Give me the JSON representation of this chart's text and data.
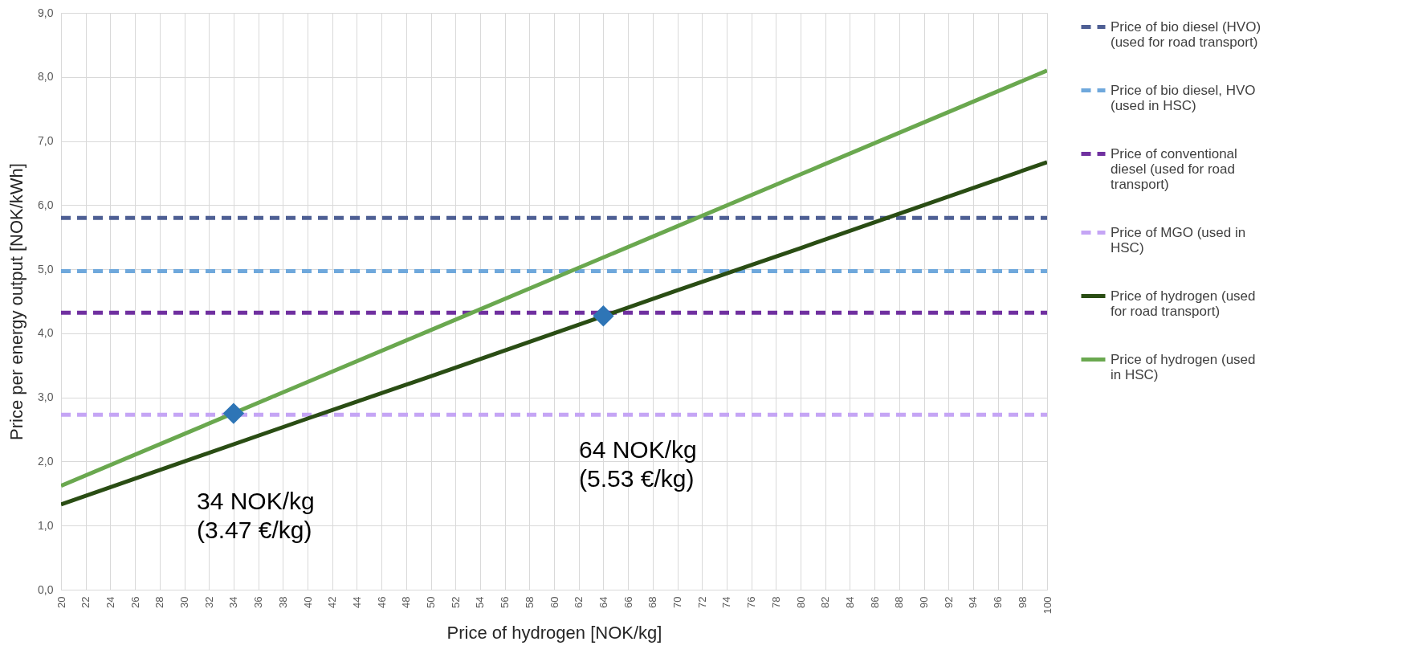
{
  "chart_data": {
    "type": "line",
    "xlabel": "Price of hydrogen [NOK/kg]",
    "ylabel": "Price per energy output [NOK/kWh]",
    "x": [
      20,
      30,
      40,
      50,
      60,
      70,
      80,
      90,
      100
    ],
    "series": [
      {
        "name": "Price of bio diesel (HVO) (used for road transport)",
        "color": "#4e5f94",
        "line_style": "dashed",
        "values": [
          5.8,
          5.8,
          5.8,
          5.8,
          5.8,
          5.8,
          5.8,
          5.8,
          5.8
        ]
      },
      {
        "name": "Price of bio diesel, HVO (used in HSC)",
        "color": "#6fa8dc",
        "line_style": "dashed",
        "values": [
          4.97,
          4.97,
          4.97,
          4.97,
          4.97,
          4.97,
          4.97,
          4.97,
          4.97
        ]
      },
      {
        "name": "Price of conventional diesel (used for road transport)",
        "color": "#7030a0",
        "line_style": "dashed",
        "values": [
          4.32,
          4.32,
          4.32,
          4.32,
          4.32,
          4.32,
          4.32,
          4.32,
          4.32
        ]
      },
      {
        "name": "Price of MGO (used in HSC)",
        "color": "#c5a5f5",
        "line_style": "dashed",
        "values": [
          2.73,
          2.73,
          2.73,
          2.73,
          2.73,
          2.73,
          2.73,
          2.73,
          2.73
        ]
      },
      {
        "name": "Price of hydrogen (used for road transport)",
        "color": "#2a4d14",
        "line_style": "solid",
        "values": [
          1.33,
          2.0,
          2.67,
          3.33,
          4.0,
          4.67,
          5.33,
          6.0,
          6.67
        ]
      },
      {
        "name": "Price of hydrogen (used in HSC)",
        "color": "#6aa84f",
        "line_style": "solid",
        "values": [
          1.62,
          2.43,
          3.24,
          4.05,
          4.86,
          5.67,
          6.48,
          7.29,
          8.1
        ]
      },
      {
        "type": "scatter",
        "marker": "diamond",
        "color": "#2e75b6",
        "x": [
          34,
          64
        ],
        "values": [
          2.75,
          4.27
        ]
      }
    ],
    "annotations": [
      "34 NOK/kg\n(3.47 €/kg)",
      "64 NOK/kg\n(5.53 €/kg)"
    ],
    "xlim": [
      20,
      100
    ],
    "xticks": [
      20,
      22,
      24,
      26,
      28,
      30,
      32,
      34,
      36,
      38,
      40,
      42,
      44,
      46,
      48,
      50,
      52,
      54,
      56,
      58,
      60,
      62,
      64,
      66,
      68,
      70,
      72,
      74,
      76,
      78,
      80,
      82,
      84,
      86,
      88,
      90,
      92,
      94,
      96,
      98,
      100
    ],
    "ylim": [
      0,
      9
    ],
    "yticks": [
      {
        "value": 0,
        "label": "0,0"
      },
      {
        "value": 1,
        "label": "1,0"
      },
      {
        "value": 2,
        "label": "2,0"
      },
      {
        "value": 3,
        "label": "3,0"
      },
      {
        "value": 4,
        "label": "4,0"
      },
      {
        "value": 5,
        "label": "5,0"
      },
      {
        "value": 6,
        "label": "6,0"
      },
      {
        "value": 7,
        "label": "7,0"
      },
      {
        "value": 8,
        "label": "8,0"
      },
      {
        "value": 9,
        "label": "9,0"
      }
    ],
    "grid": true,
    "legend": "right"
  }
}
